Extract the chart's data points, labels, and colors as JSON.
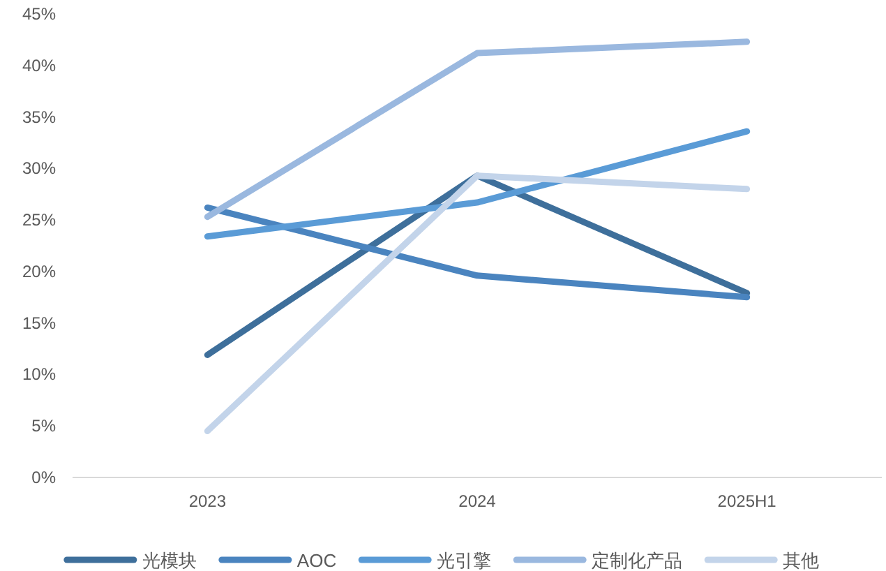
{
  "chart_data": {
    "type": "line",
    "categories": [
      "2023",
      "2024",
      "2025H1"
    ],
    "series": [
      {
        "name": "光模块",
        "color": "#3e6f9b",
        "values": [
          11.9,
          29.3,
          17.9
        ]
      },
      {
        "name": "AOC",
        "color": "#4a84bf",
        "values": [
          26.2,
          19.6,
          17.5
        ]
      },
      {
        "name": "光引擎",
        "color": "#5a9bd6",
        "values": [
          23.4,
          26.7,
          33.6
        ]
      },
      {
        "name": "定制化产品",
        "color": "#9ab8df",
        "values": [
          25.3,
          41.2,
          42.3
        ]
      },
      {
        "name": "其他",
        "color": "#c3d4ea",
        "values": [
          4.5,
          29.3,
          28.0
        ]
      }
    ],
    "ylim": [
      0,
      45
    ],
    "yticks": [
      {
        "value": 0,
        "label": "0%"
      },
      {
        "value": 5,
        "label": "5%"
      },
      {
        "value": 10,
        "label": "10%"
      },
      {
        "value": 15,
        "label": "15%"
      },
      {
        "value": 20,
        "label": "20%"
      },
      {
        "value": 25,
        "label": "25%"
      },
      {
        "value": 30,
        "label": "30%"
      },
      {
        "value": 35,
        "label": "35%"
      },
      {
        "value": 40,
        "label": "40%"
      },
      {
        "value": 45,
        "label": "45%"
      }
    ],
    "grid": false,
    "legend": "bottom",
    "marker": "none",
    "line_style": "solid"
  }
}
